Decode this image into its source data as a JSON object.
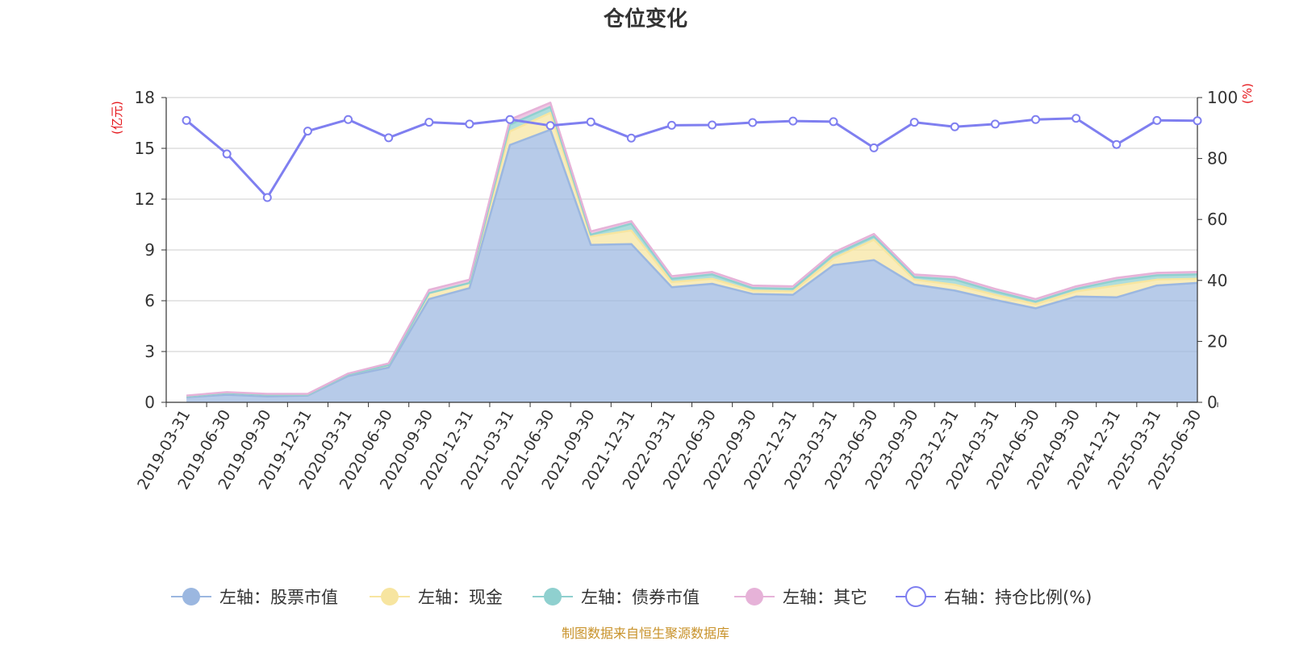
{
  "chart_data": {
    "type": "area",
    "title": "仓位变化",
    "left_axis_unit": "(亿元)",
    "right_axis_unit": "(%)",
    "ylim_left": [
      0,
      18
    ],
    "yticks_left": [
      0,
      3,
      6,
      9,
      12,
      15,
      18
    ],
    "ylim_right": [
      0,
      100
    ],
    "yticks_right": [
      0,
      20,
      40,
      60,
      80,
      100
    ],
    "x": [
      "2019-03-31",
      "2019-06-30",
      "2019-09-30",
      "2019-12-31",
      "2020-03-31",
      "2020-06-30",
      "2020-09-30",
      "2020-12-31",
      "2021-03-31",
      "2021-06-30",
      "2021-09-30",
      "2021-12-31",
      "2022-03-31",
      "2022-06-30",
      "2022-09-30",
      "2022-12-31",
      "2023-03-31",
      "2023-06-30",
      "2023-09-30",
      "2023-12-31",
      "2024-03-31",
      "2024-06-30",
      "2024-09-30",
      "2024-12-31",
      "2025-03-31",
      "2025-06-30"
    ],
    "series": [
      {
        "name": "左轴：股票市值",
        "axis": "left",
        "stacked": true,
        "color": "#9bb7e0",
        "values": [
          0.3,
          0.45,
          0.35,
          0.4,
          1.55,
          2.05,
          6.1,
          6.75,
          15.2,
          16.1,
          9.3,
          9.35,
          6.8,
          7.0,
          6.4,
          6.35,
          8.1,
          8.4,
          6.95,
          6.6,
          6.05,
          5.55,
          6.25,
          6.2,
          6.9,
          7.05
        ]
      },
      {
        "name": "左轴：现金",
        "axis": "left",
        "stacked": true,
        "color": "#f7e5a0",
        "values": [
          0.05,
          0.1,
          0.1,
          0.05,
          0.1,
          0.15,
          0.35,
          0.3,
          0.8,
          1.0,
          0.5,
          0.8,
          0.3,
          0.3,
          0.2,
          0.2,
          0.4,
          1.2,
          0.3,
          0.35,
          0.3,
          0.25,
          0.3,
          0.7,
          0.35,
          0.25
        ]
      },
      {
        "name": "左轴：债券市值",
        "axis": "left",
        "stacked": true,
        "color": "#8fd0cf",
        "values": [
          0.0,
          0.0,
          0.0,
          0.0,
          0.0,
          0.0,
          0.0,
          0.0,
          0.4,
          0.35,
          0.1,
          0.4,
          0.2,
          0.25,
          0.15,
          0.15,
          0.2,
          0.2,
          0.15,
          0.3,
          0.2,
          0.15,
          0.15,
          0.3,
          0.25,
          0.25
        ]
      },
      {
        "name": "左轴：其它",
        "axis": "left",
        "stacked": true,
        "color": "#e6b2d8",
        "values": [
          0.05,
          0.05,
          0.05,
          0.05,
          0.05,
          0.1,
          0.2,
          0.2,
          0.3,
          0.25,
          0.2,
          0.15,
          0.15,
          0.15,
          0.15,
          0.15,
          0.15,
          0.15,
          0.15,
          0.15,
          0.15,
          0.15,
          0.15,
          0.15,
          0.15,
          0.15
        ]
      },
      {
        "name": "右轴：持仓比例(%)",
        "axis": "right",
        "type": "line",
        "color": "#7f7ff0",
        "values": [
          92.5,
          81.5,
          67.2,
          89.0,
          92.8,
          86.8,
          91.9,
          91.3,
          92.8,
          90.8,
          92.0,
          86.7,
          90.9,
          91.0,
          91.8,
          92.3,
          92.1,
          83.5,
          91.9,
          90.4,
          91.3,
          92.8,
          93.2,
          84.6,
          92.5,
          92.4
        ]
      }
    ],
    "legend_position": "bottom",
    "grid": "horizontal"
  },
  "footer": {
    "source": "制图数据来自恒生聚源数据库"
  }
}
